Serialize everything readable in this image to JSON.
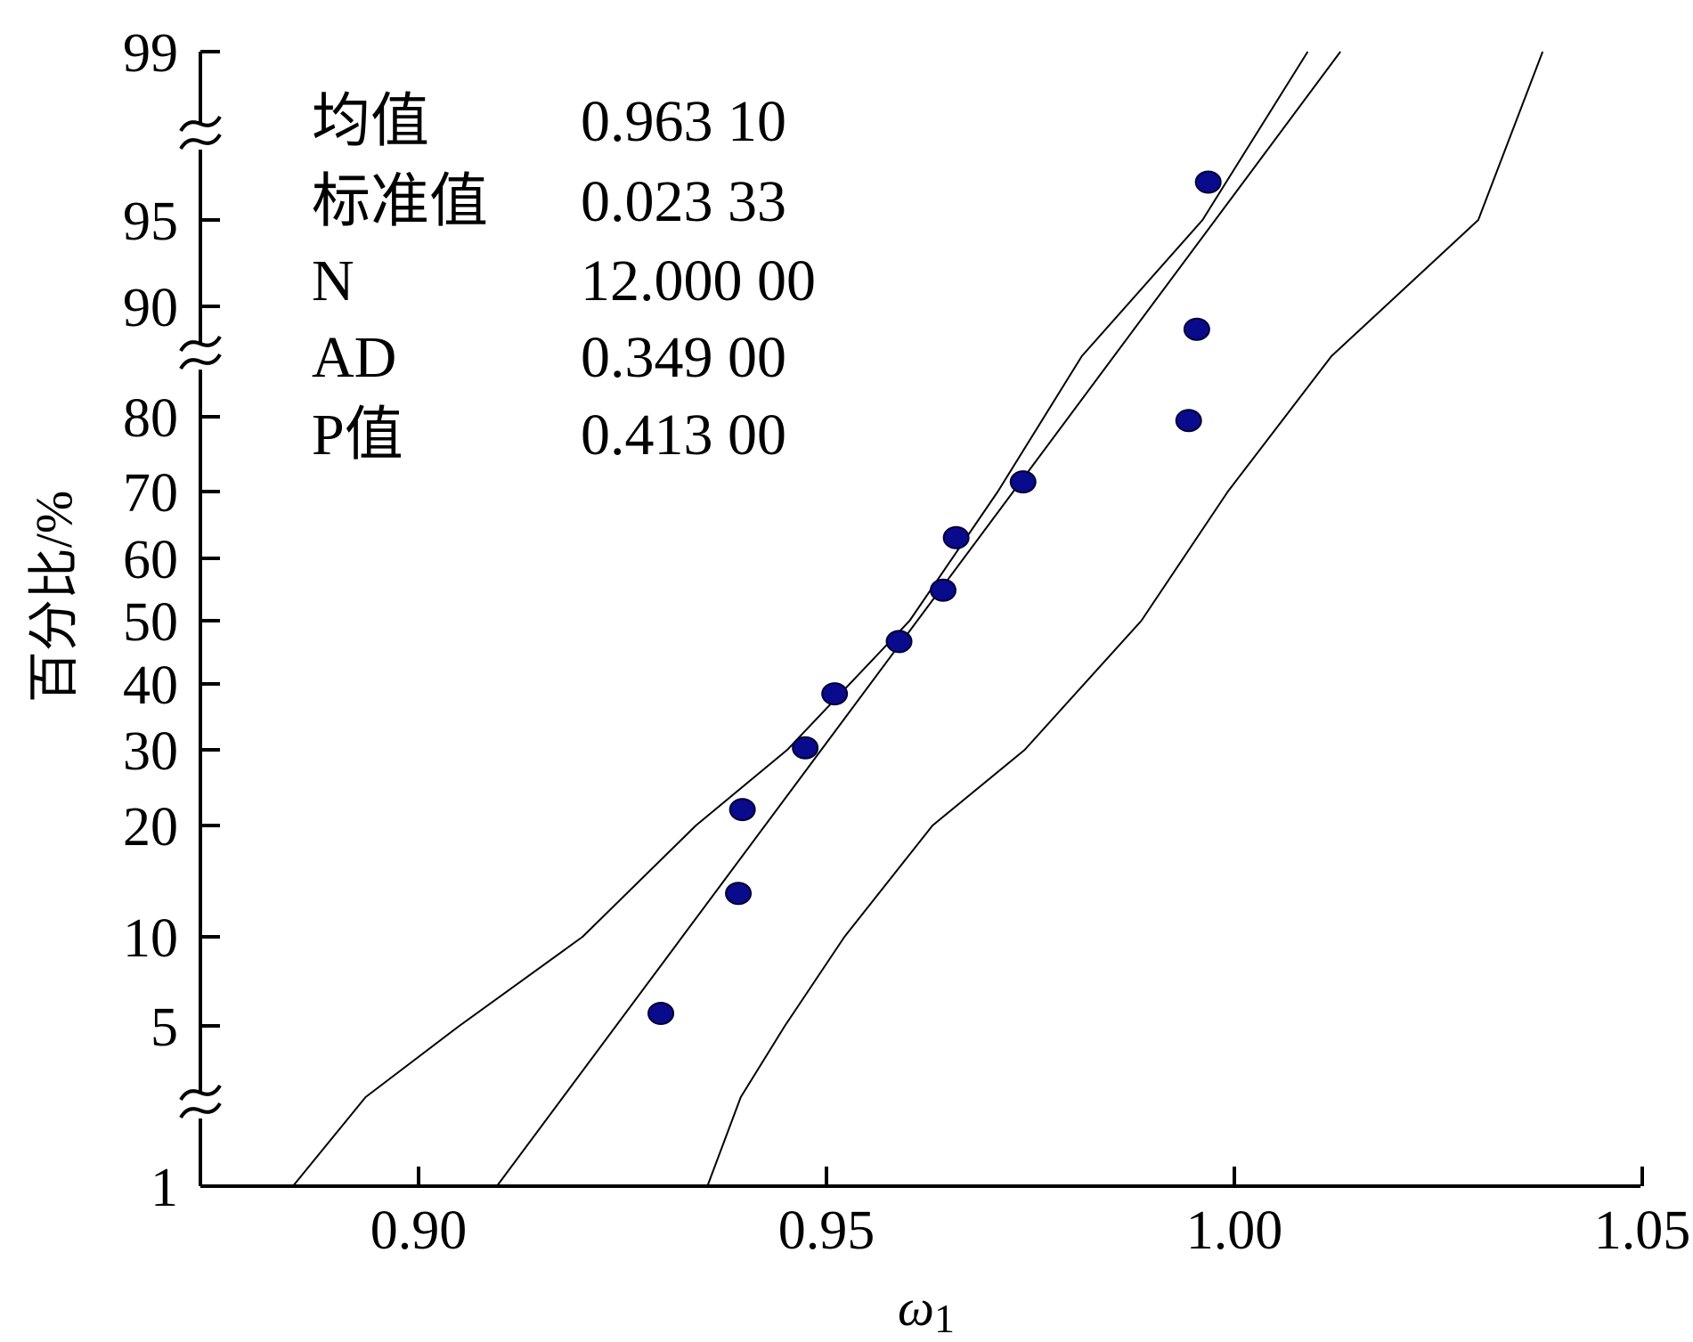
{
  "chart_data": {
    "type": "scatter",
    "subtype": "normal probability plot",
    "xlabel": "ω",
    "xlabel_subscript": "1",
    "ylabel": "百分比/%",
    "xlim": [
      0.875,
      1.05
    ],
    "x_ticks": [
      "0.90",
      "0.95",
      "1.00",
      "1.05"
    ],
    "y_ticks": [
      "1",
      "5",
      "10",
      "20",
      "30",
      "40",
      "50",
      "60",
      "70",
      "80",
      "90",
      "95",
      "99"
    ],
    "y_scale": "normal-probability",
    "grid": false,
    "axis_breaks": true,
    "points": [
      {
        "x": 0.9297,
        "y": 5.7
      },
      {
        "x": 0.9392,
        "y": 13.9
      },
      {
        "x": 0.9397,
        "y": 22.1
      },
      {
        "x": 0.9474,
        "y": 30.3
      },
      {
        "x": 0.951,
        "y": 38.5
      },
      {
        "x": 0.9589,
        "y": 46.7
      },
      {
        "x": 0.9643,
        "y": 54.9
      },
      {
        "x": 0.9659,
        "y": 63.1
      },
      {
        "x": 0.9741,
        "y": 71.3
      },
      {
        "x": 0.9944,
        "y": 79.5
      },
      {
        "x": 0.9954,
        "y": 87.7
      },
      {
        "x": 0.9968,
        "y": 95.9
      }
    ],
    "fit_line": {
      "name": "fit",
      "x": [
        0.9096,
        1.013
      ],
      "y": [
        1,
        99
      ]
    },
    "confidence_bands": [
      {
        "name": "lower band",
        "x": [
          0.8846,
          0.8935,
          0.905,
          0.9201,
          0.934,
          0.9452,
          0.9602,
          0.971,
          0.9813,
          0.9961,
          1.009
        ],
        "y": [
          1,
          2,
          5,
          10,
          20,
          30,
          50,
          70,
          85,
          95,
          99
        ]
      },
      {
        "name": "upper band",
        "x": [
          0.9354,
          0.9395,
          0.9449,
          0.9522,
          0.963,
          0.9743,
          0.9886,
          0.9992,
          1.0119,
          1.0299,
          1.0378
        ],
        "y": [
          1,
          2,
          5,
          10,
          20,
          30,
          50,
          70,
          85,
          95,
          99
        ]
      }
    ],
    "stats_box": {
      "rows": [
        {
          "label": "均值",
          "value": "0.963 10"
        },
        {
          "label": "标准值",
          "value": "0.023 33"
        },
        {
          "label": "N",
          "value": "12.000 00"
        },
        {
          "label": "AD",
          "value": "0.349 00"
        },
        {
          "label": "P值",
          "value": "0.413 00"
        }
      ]
    },
    "colors": {
      "points": "#0a0a8c",
      "lines": "#000000",
      "axes": "#000000"
    }
  }
}
